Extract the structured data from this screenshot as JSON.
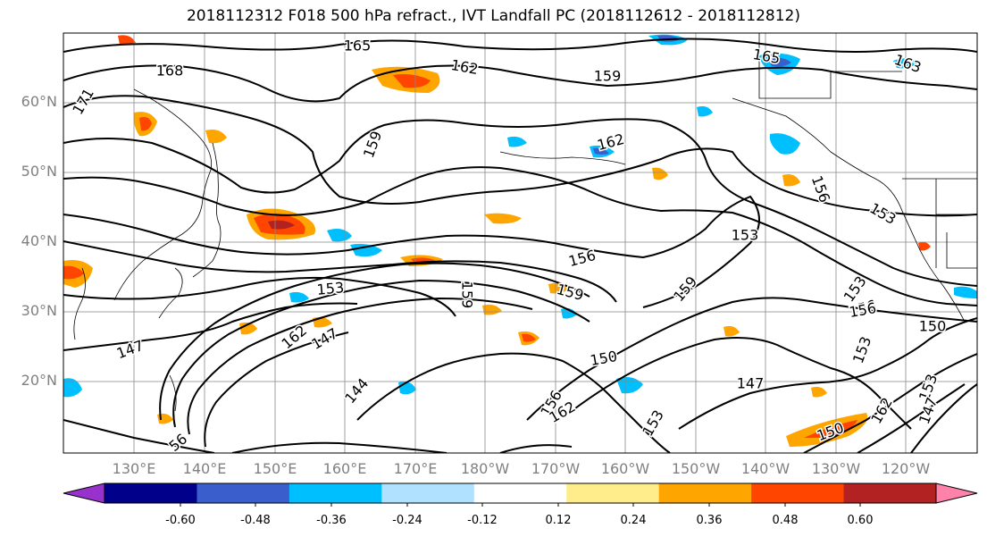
{
  "title": "2018112312 F018 500 hPa refract., IVT Landfall PC (2018112612 - 2018112812)",
  "lat_labels": [
    "60°N",
    "50°N",
    "40°N",
    "30°N",
    "20°N"
  ],
  "lon_labels": [
    "130°E",
    "140°E",
    "150°E",
    "160°E",
    "170°E",
    "180°W",
    "170°W",
    "160°W",
    "150°W",
    "140°W",
    "130°W",
    "120°W"
  ],
  "colorbar": {
    "colors": [
      "#9932cc",
      "#00008b",
      "#3a5fcd",
      "#00bfff",
      "#b0e2ff",
      "#ffffff",
      "#ffec8b",
      "#ffa500",
      "#ff4500",
      "#b22222",
      "#ff82ab"
    ],
    "tick_labels": [
      "-0.60",
      "-0.48",
      "-0.36",
      "-0.24",
      "-0.12",
      "0.12",
      "0.24",
      "0.36",
      "0.48",
      "0.60"
    ]
  },
  "contour_labels": [
    "165",
    "162",
    "168",
    "171",
    "159",
    "162",
    "165",
    "163",
    "159",
    "153",
    "153",
    "156",
    "153",
    "159",
    "153",
    "156",
    "159",
    "147",
    "162",
    "147",
    "144",
    "150",
    "156",
    "162",
    "150",
    "147",
    "153",
    "153",
    "156",
    "150",
    "162",
    "159",
    "147",
    "56",
    "153",
    "156"
  ]
}
